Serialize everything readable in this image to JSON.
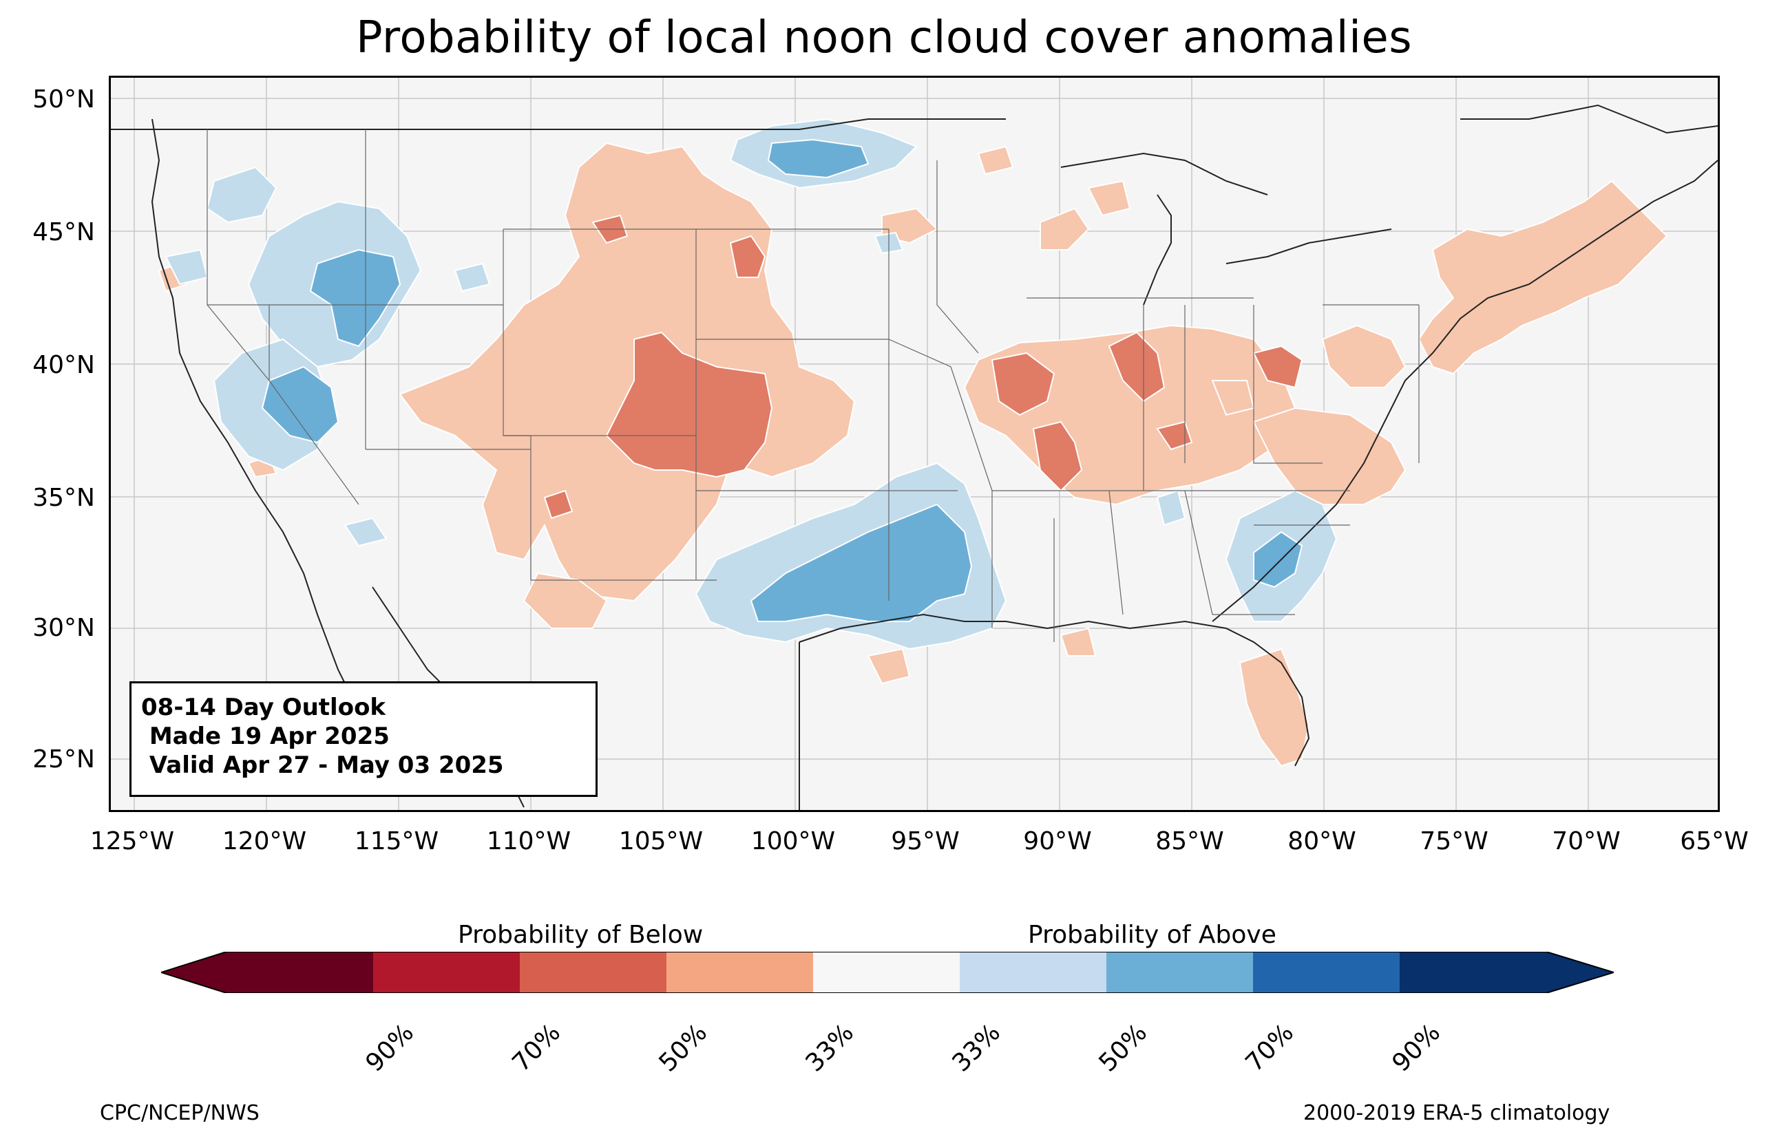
{
  "title": "Probability of local noon cloud cover anomalies",
  "outlook": {
    "line1": "08-14 Day Outlook",
    "line2": " Made 19 Apr 2025",
    "line3": " Valid Apr 27 - May 03 2025"
  },
  "lat_labels": [
    "50°N",
    "45°N",
    "40°N",
    "35°N",
    "30°N",
    "25°N"
  ],
  "lon_labels": [
    "125°W",
    "120°W",
    "115°W",
    "110°W",
    "105°W",
    "100°W",
    "95°W",
    "90°W",
    "85°W",
    "80°W",
    "75°W",
    "70°W",
    "65°W"
  ],
  "legend": {
    "below_title": "Probability of Below",
    "above_title": "Probability of Above",
    "tick_labels": [
      "90%",
      "70%",
      "50%",
      "33%",
      "33%",
      "50%",
      "70%",
      "90%"
    ],
    "colors": [
      "#67001f",
      "#b2182b",
      "#d6604d",
      "#f4a582",
      "#f7f7f7",
      "#c6dbef",
      "#6baed6",
      "#2166ac",
      "#08306b"
    ]
  },
  "credits": {
    "left": "CPC/NCEP/NWS",
    "right": "2000-2019 ERA-5 climatology"
  },
  "colors": {
    "background": "#f5f5f5",
    "below_33": "#f6c6ad",
    "below_50": "#e07b66",
    "above_33": "#c2dcec",
    "above_50": "#6aaed6"
  }
}
